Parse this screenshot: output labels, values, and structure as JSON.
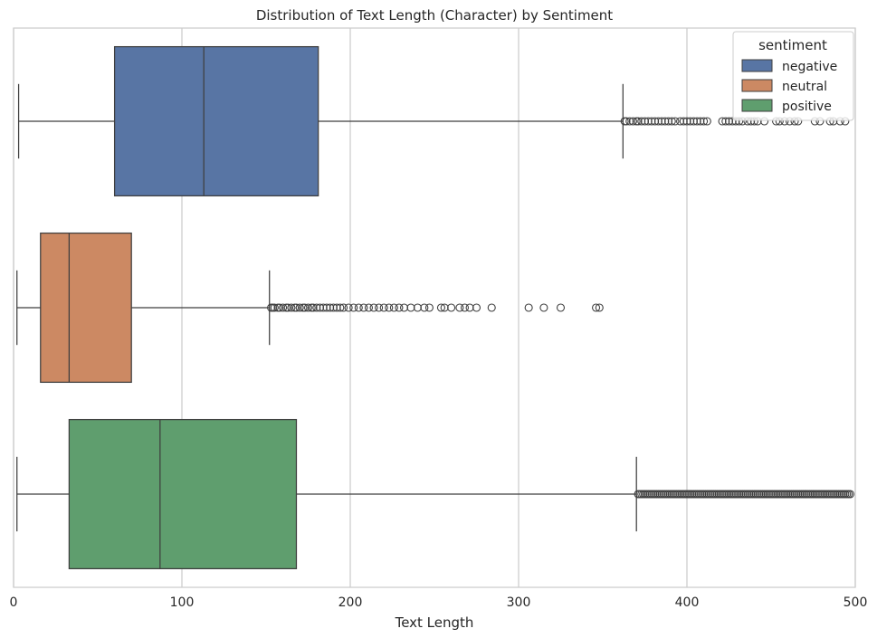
{
  "chart_data": {
    "type": "boxplot",
    "orientation": "horizontal",
    "title": "Distribution of Text Length (Character) by Sentiment",
    "xlabel": "Text Length",
    "ylabel": "",
    "xlim": [
      0,
      500
    ],
    "xticks": [
      0,
      100,
      200,
      300,
      400,
      500
    ],
    "grid": "vertical",
    "legend": {
      "title": "sentiment",
      "placement": "top-right"
    },
    "series": [
      {
        "name": "negative",
        "color": "#5875a4",
        "whisker_low": 3,
        "q1": 60,
        "median": 113,
        "q3": 181,
        "whisker_high": 362,
        "outliers": [
          363,
          364,
          366,
          368,
          370,
          371,
          373,
          375,
          377,
          379,
          381,
          383,
          385,
          387,
          389,
          391,
          393,
          396,
          398,
          400,
          402,
          404,
          406,
          408,
          410,
          412,
          421,
          423,
          425,
          427,
          429,
          431,
          433,
          436,
          438,
          440,
          442,
          446,
          453,
          455,
          458,
          461,
          464,
          466,
          476,
          479,
          485,
          487,
          491,
          494
        ]
      },
      {
        "name": "neutral",
        "color": "#cc8963",
        "whisker_low": 2,
        "q1": 16,
        "median": 33,
        "q3": 70,
        "whisker_high": 152,
        "outliers": [
          153,
          154,
          155,
          157,
          158,
          160,
          162,
          163,
          165,
          167,
          168,
          170,
          172,
          173,
          175,
          177,
          178,
          180,
          182,
          184,
          186,
          188,
          190,
          192,
          194,
          196,
          199,
          202,
          205,
          208,
          211,
          214,
          217,
          220,
          223,
          226,
          229,
          232,
          236,
          240,
          244,
          247,
          254,
          256,
          260,
          265,
          268,
          271,
          275,
          284,
          306,
          315,
          325,
          346,
          348
        ]
      },
      {
        "name": "positive",
        "color": "#5f9e6e",
        "whisker_low": 2,
        "q1": 33,
        "median": 87,
        "q3": 168,
        "whisker_high": 370,
        "outliers": [
          371,
          372,
          373,
          374,
          375,
          376,
          377,
          378,
          379,
          380,
          381,
          382,
          383,
          384,
          385,
          386,
          387,
          388,
          389,
          390,
          391,
          392,
          393,
          394,
          395,
          396,
          397,
          398,
          399,
          400,
          401,
          402,
          403,
          404,
          405,
          406,
          407,
          408,
          409,
          410,
          411,
          412,
          413,
          414,
          415,
          416,
          417,
          418,
          419,
          420,
          421,
          422,
          423,
          424,
          425,
          426,
          427,
          428,
          429,
          430,
          431,
          432,
          433,
          434,
          435,
          436,
          437,
          438,
          439,
          440,
          441,
          442,
          443,
          444,
          445,
          446,
          447,
          448,
          449,
          450,
          451,
          452,
          453,
          454,
          455,
          456,
          457,
          458,
          459,
          460,
          461,
          462,
          463,
          464,
          465,
          466,
          467,
          468,
          469,
          470,
          471,
          472,
          473,
          474,
          475,
          476,
          477,
          478,
          479,
          480,
          481,
          482,
          483,
          484,
          485,
          486,
          487,
          488,
          489,
          490,
          491,
          492,
          493,
          494,
          495,
          496,
          497
        ]
      }
    ]
  }
}
